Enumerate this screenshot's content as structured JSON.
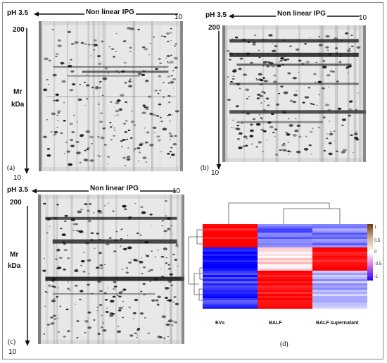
{
  "gel_a": {
    "ph_start": "pH 3.5",
    "ph_end": "10",
    "ipg_label": "Non linear IPG",
    "mr_top": "200",
    "mr_label_1": "Mr",
    "mr_label_2": "kDa",
    "mr_bottom": "10",
    "panel": "(a)"
  },
  "gel_b": {
    "ph_start": "pH 3.5",
    "ph_end": "10",
    "ipg_label": "Non linear IPG",
    "mr_top": "200",
    "mr_bottom": "10",
    "panel": "(b)"
  },
  "gel_c": {
    "ph_start": "pH 3.5",
    "ph_end": "10",
    "ipg_label": "Non linear IPG",
    "mr_top": "200",
    "mr_label_1": "Mr",
    "mr_label_2": "kDa",
    "mr_bottom": "10",
    "panel": "(c)"
  },
  "heatmap": {
    "panel": "(d)",
    "columns": [
      "EVs",
      "BALF",
      "BALF supernatant"
    ],
    "colorbar_ticks": [
      "1",
      "0.5",
      "0",
      "-0.5",
      "-1"
    ],
    "colors": {
      "high": "#ff0000",
      "mid": "#ffffff",
      "low": "#0000ff",
      "top": "#7a3a10"
    }
  }
}
